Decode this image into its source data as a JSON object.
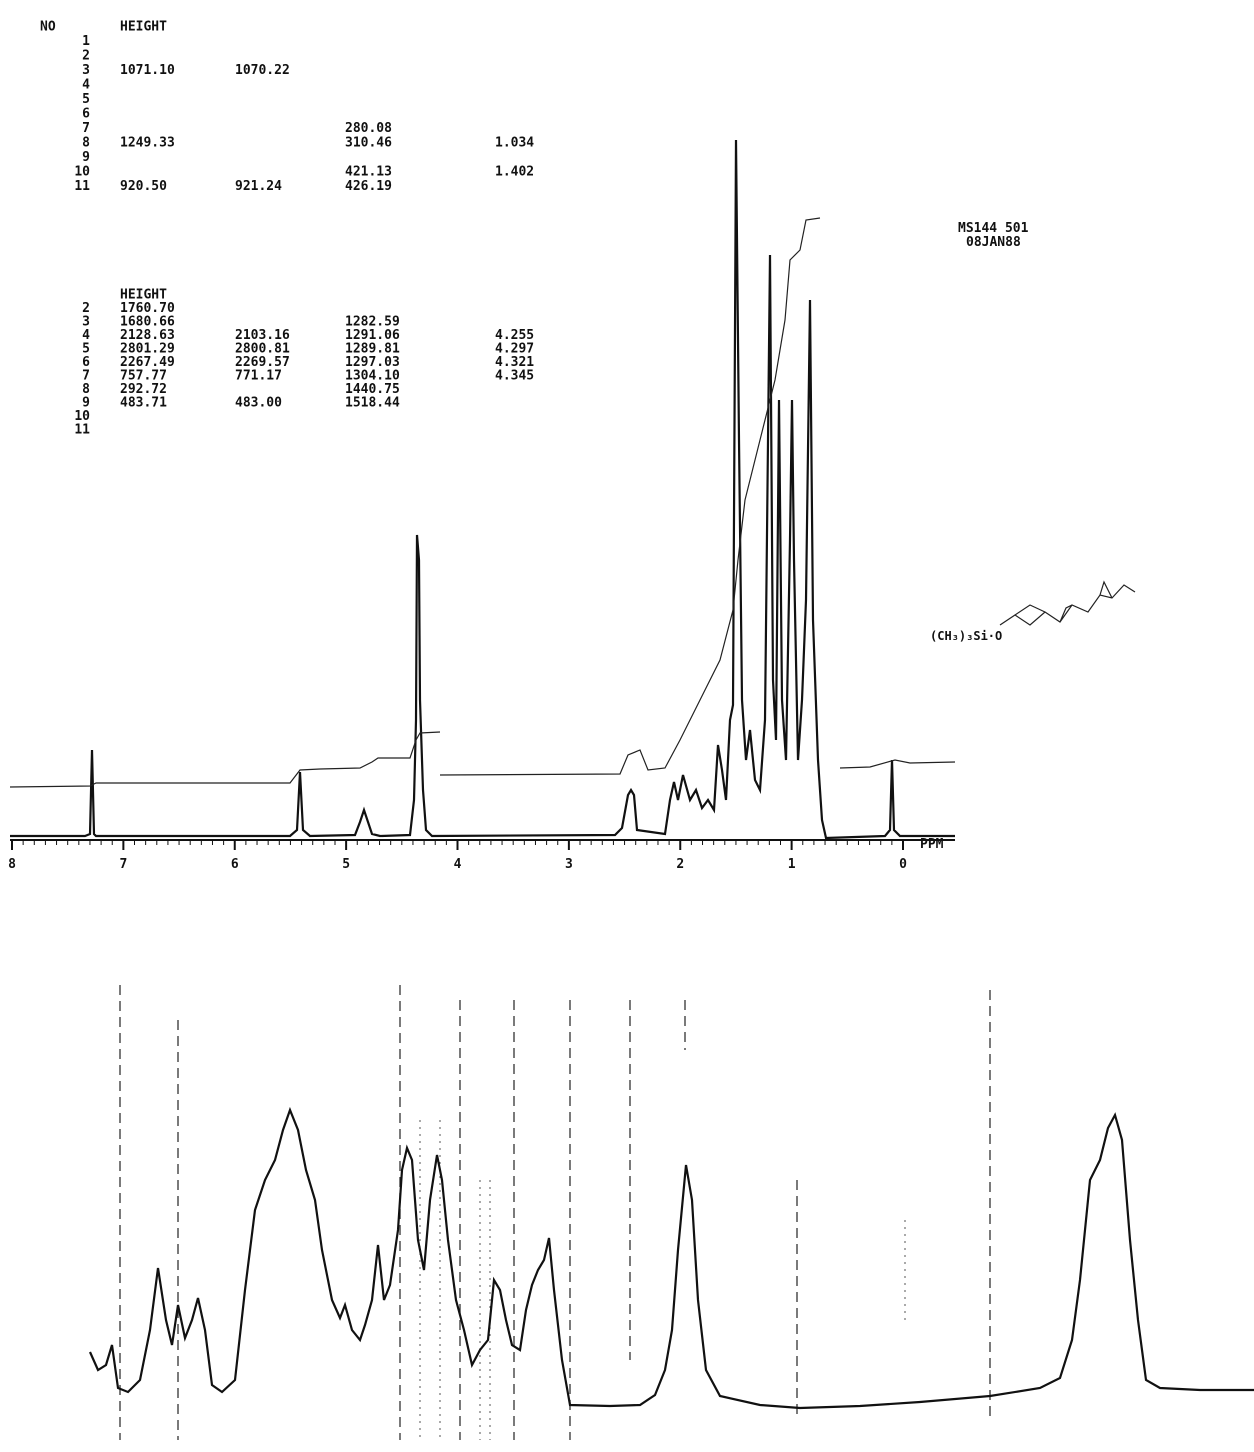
{
  "table_1": {
    "headers": [
      "NO",
      "HEIGHT"
    ],
    "rows": [
      {
        "no": "1"
      },
      {
        "no": "2"
      },
      {
        "no": "3",
        "height": "1071.10",
        "height2": "1070.22"
      },
      {
        "no": "4"
      },
      {
        "no": "5"
      },
      {
        "no": "6"
      },
      {
        "no": "7",
        "freq": "280.08"
      },
      {
        "no": "8",
        "height": "1249.33",
        "freq": "310.46",
        "ppm": "1.034"
      },
      {
        "no": "9"
      },
      {
        "no": "10",
        "freq": "421.13",
        "ppm": "1.402"
      },
      {
        "no": "11",
        "height": "920.50",
        "height2": "921.24",
        "freq": "426.19"
      }
    ]
  },
  "table_2": {
    "headers": [
      "HEIGHT"
    ],
    "rows": [
      {
        "no": "2",
        "height": "1760.70"
      },
      {
        "no": "3",
        "height": "1680.66",
        "freq": "1282.59"
      },
      {
        "no": "4",
        "height": "2128.63",
        "height2": "2103.16",
        "freq": "1291.06",
        "ppm": "4.255"
      },
      {
        "no": "5",
        "height": "2801.29",
        "height2": "2800.81",
        "freq": "1289.81",
        "ppm": "4.297"
      },
      {
        "no": "6",
        "height": "2267.49",
        "height2": "2269.57",
        "freq": "1297.03",
        "ppm": "4.321"
      },
      {
        "no": "7",
        "height": "757.77",
        "height2": "771.17",
        "freq": "1304.10",
        "ppm": "4.345"
      },
      {
        "no": "8",
        "height": "292.72",
        "freq": "1440.75"
      },
      {
        "no": "9",
        "height": "483.71",
        "height2": "483.00",
        "freq": "1518.44"
      },
      {
        "no": "10"
      },
      {
        "no": "11"
      }
    ]
  },
  "sample": {
    "id": "MS144 501",
    "date": "08JAN88"
  },
  "axis": {
    "ticks": [
      "8",
      "7",
      "6",
      "5",
      "4",
      "3",
      "2",
      "1",
      "0"
    ],
    "unit": "PPM"
  }
}
